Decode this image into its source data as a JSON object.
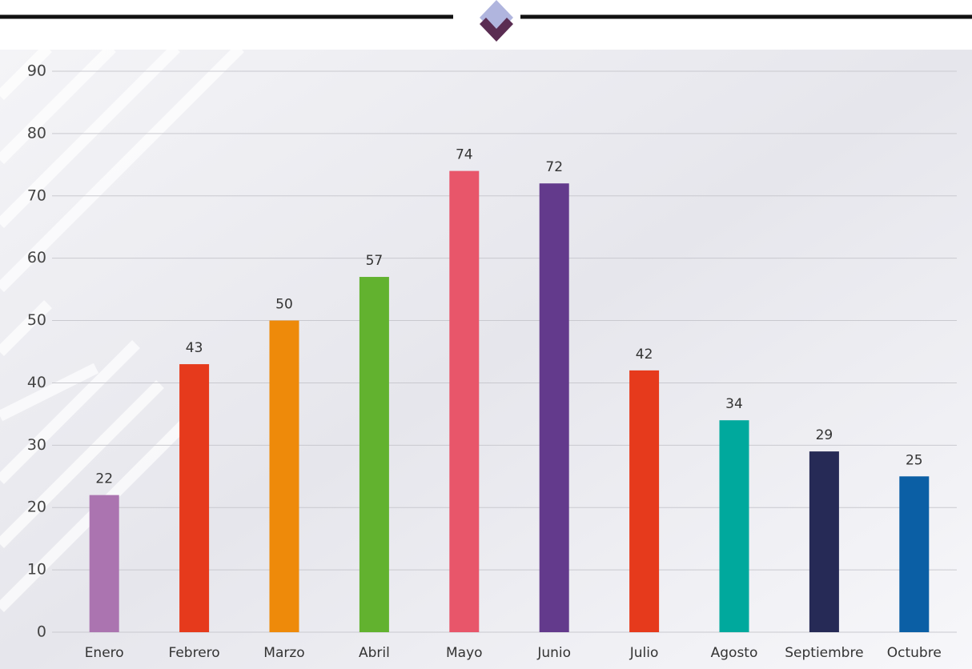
{
  "chart_data": {
    "type": "bar",
    "categories": [
      "Enero",
      "Febrero",
      "Marzo",
      "Abril",
      "Mayo",
      "Junio",
      "Julio",
      "Agosto",
      "Septiembre",
      "Octubre"
    ],
    "values": [
      22,
      43,
      50,
      57,
      74,
      72,
      42,
      34,
      29,
      25
    ],
    "colors": [
      "#ab74b0",
      "#e63a1c",
      "#ee8a0a",
      "#62b22f",
      "#e8566a",
      "#633a8c",
      "#e63a1c",
      "#00a99d",
      "#262a56",
      "#0b5fa5"
    ],
    "ylim": [
      0,
      90
    ],
    "yticks": [
      0,
      10,
      20,
      30,
      40,
      50,
      60,
      70,
      80,
      90
    ],
    "grid": true
  }
}
